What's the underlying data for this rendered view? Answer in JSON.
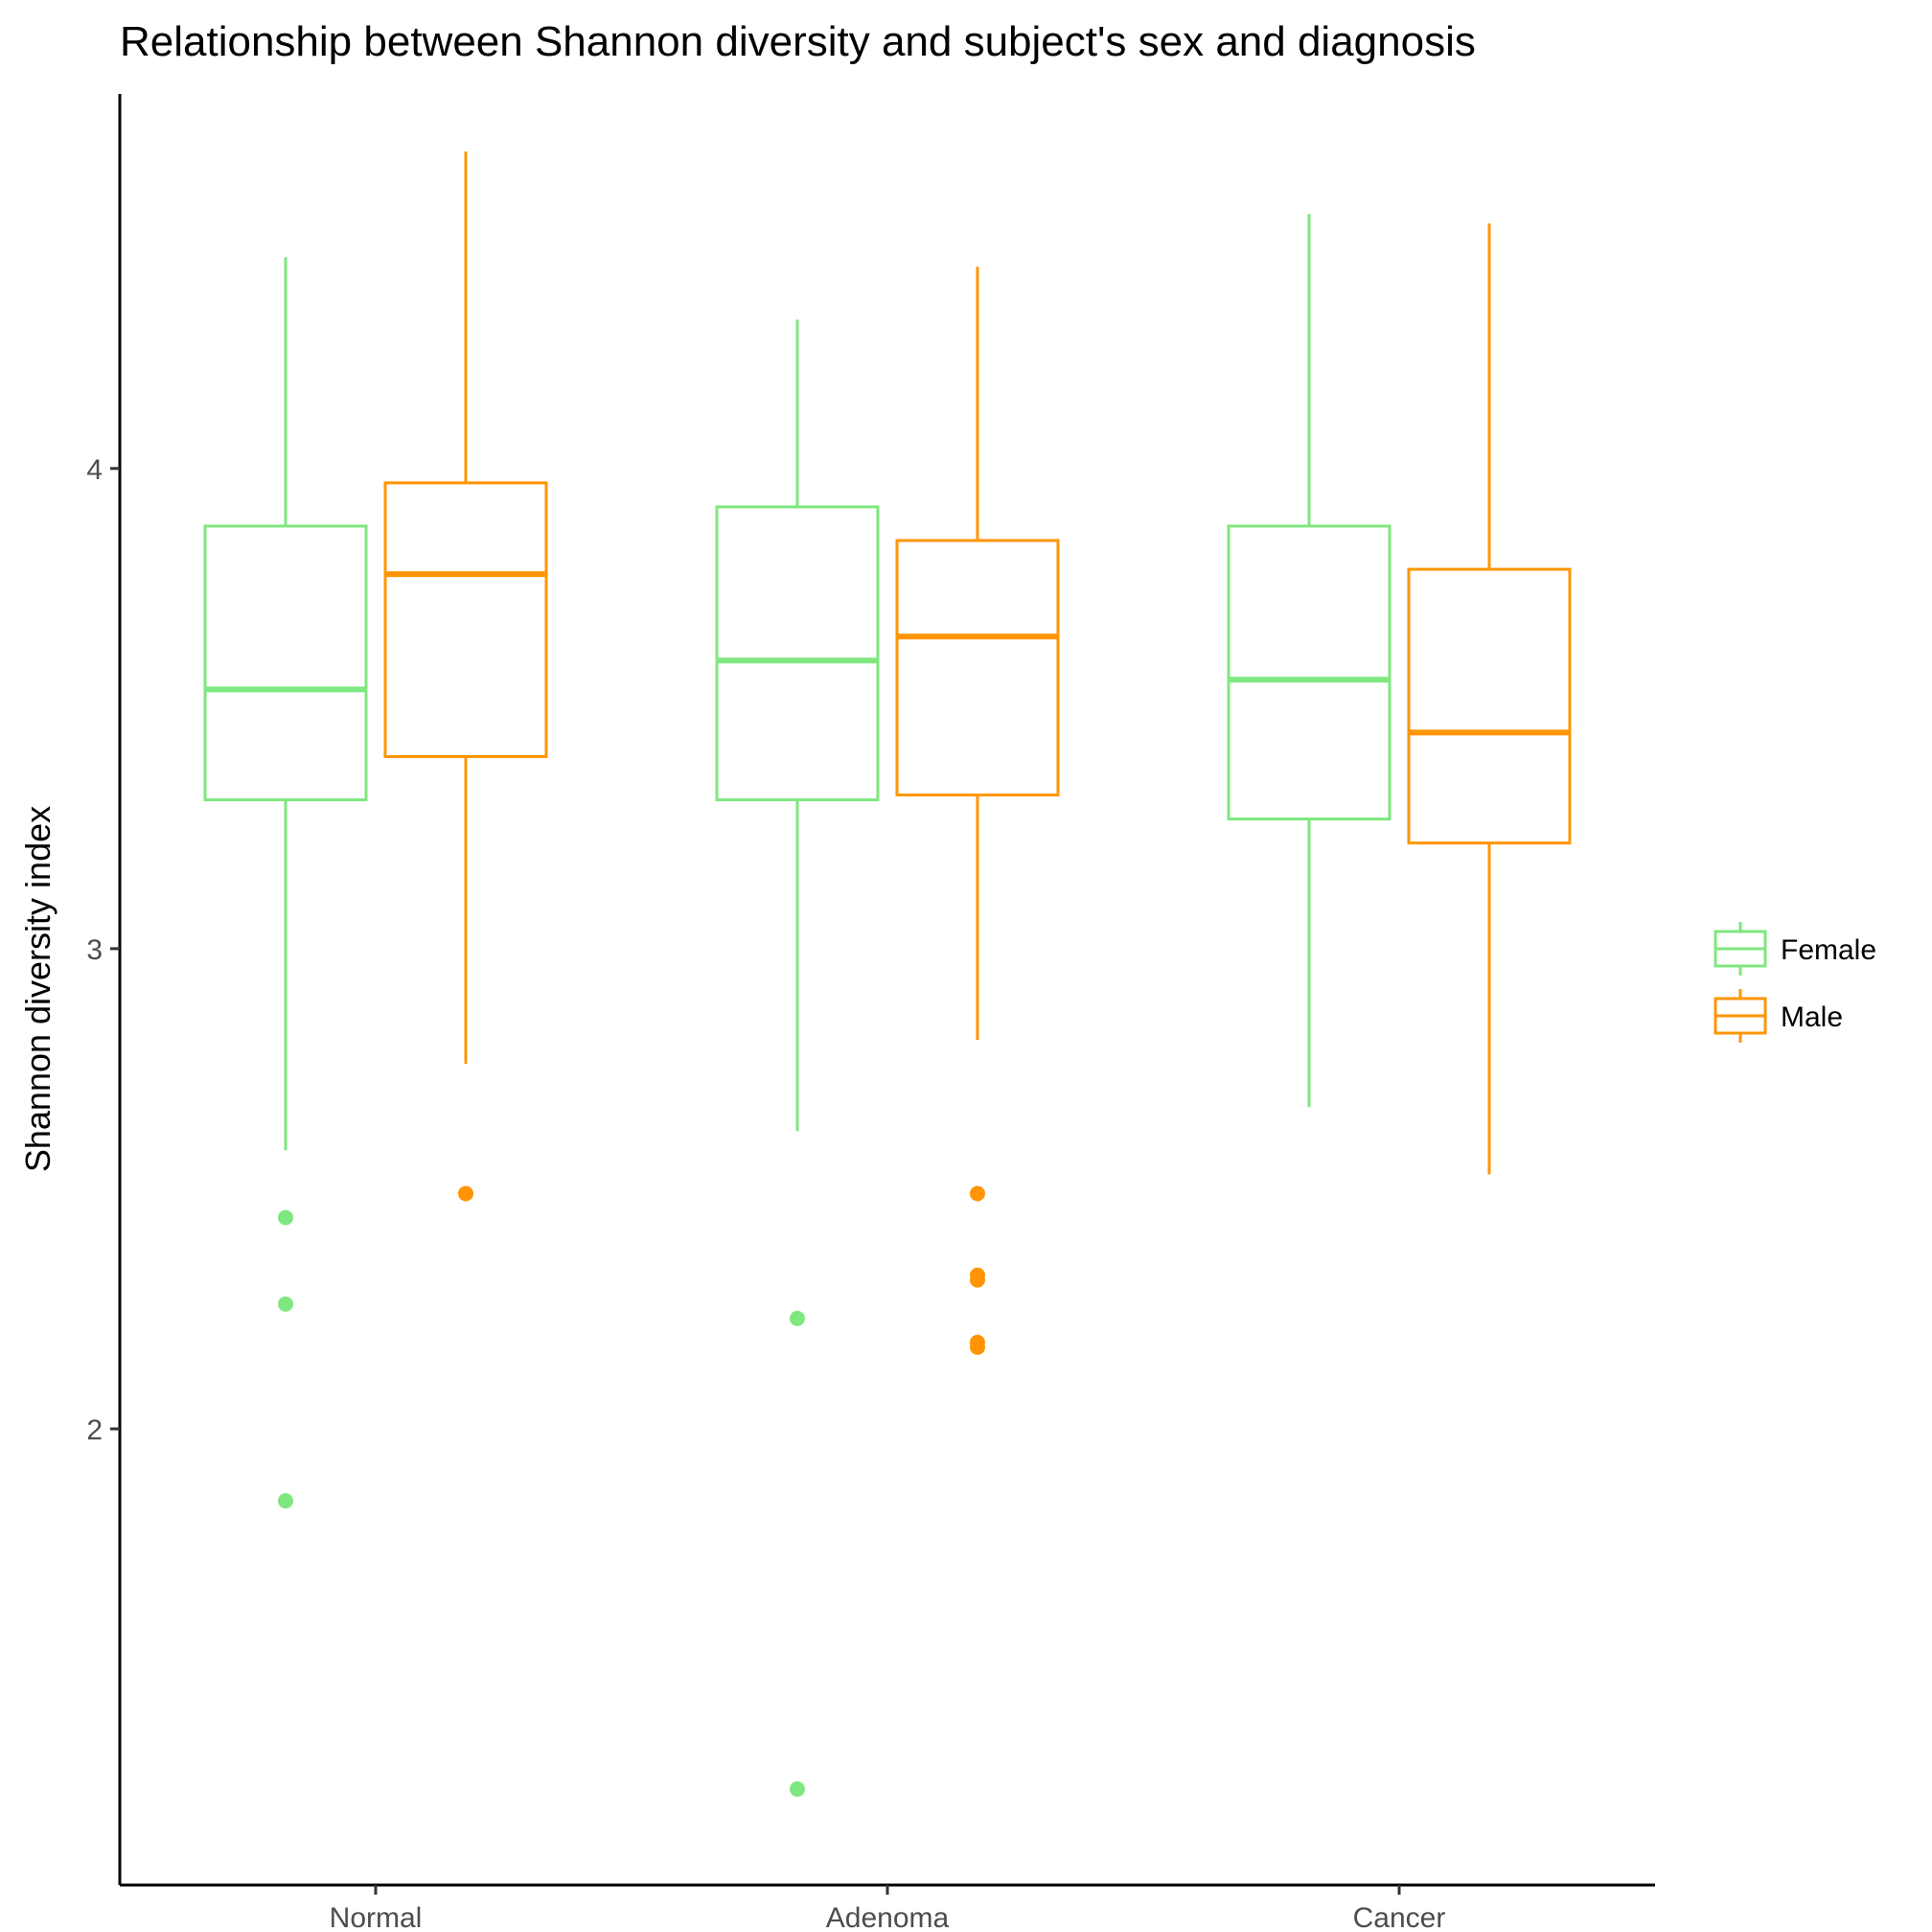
{
  "chart_data": {
    "type": "boxplot",
    "title": "Relationship between Shannon diversity and subject's sex and diagnosis",
    "xlabel": "",
    "ylabel": "Shannon diversity index",
    "categories": [
      "Normal",
      "Adenoma",
      "Cancer"
    ],
    "ylim": [
      1.05,
      4.78
    ],
    "yticks": [
      2,
      3,
      4
    ],
    "grid": false,
    "legend": {
      "position": "right",
      "entries": [
        "Female",
        "Male"
      ]
    },
    "series": [
      {
        "name": "Female",
        "color": "#7fe77f",
        "boxes": [
          {
            "min": 2.58,
            "q1": 3.31,
            "median": 3.54,
            "q3": 3.88,
            "max": 4.44,
            "outliers": [
              2.44,
              2.26,
              1.85
            ]
          },
          {
            "min": 2.62,
            "q1": 3.31,
            "median": 3.6,
            "q3": 3.92,
            "max": 4.31,
            "outliers": [
              2.23,
              1.25
            ]
          },
          {
            "min": 2.67,
            "q1": 3.27,
            "median": 3.56,
            "q3": 3.88,
            "max": 4.53
          }
        ]
      },
      {
        "name": "Male",
        "color": "#ff9505",
        "boxes": [
          {
            "min": 2.76,
            "q1": 3.4,
            "median": 3.78,
            "q3": 3.97,
            "max": 4.66,
            "outliers": [
              2.49
            ]
          },
          {
            "min": 2.81,
            "q1": 3.32,
            "median": 3.65,
            "q3": 3.85,
            "max": 4.42,
            "outliers": [
              2.49,
              2.32,
              2.31,
              2.18,
              2.17
            ]
          },
          {
            "min": 2.53,
            "q1": 3.22,
            "median": 3.45,
            "q3": 3.79,
            "max": 4.51
          }
        ]
      }
    ]
  }
}
